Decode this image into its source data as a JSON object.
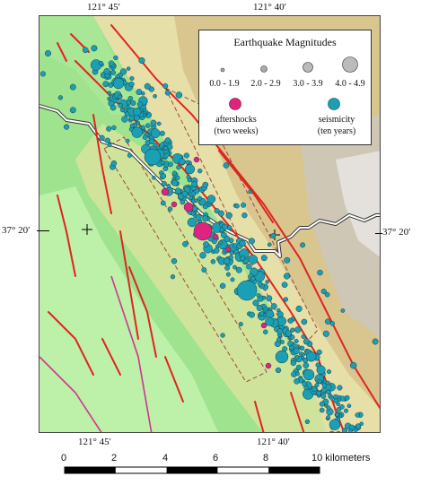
{
  "coords": {
    "top_left": "121° 45′",
    "top_right": "121° 40′",
    "bottom_left": "121° 45′",
    "bottom_right": "121° 40′",
    "left_lat": "37° 20′",
    "right_lat": "37° 20′"
  },
  "legend": {
    "title": "Earthquake Magnitudes",
    "ranges": [
      "0.0 - 1.9",
      "2.0 - 2.9",
      "3.0 - 3.9",
      "4.0 - 4.9"
    ],
    "aftershocks_label_1": "aftershocks",
    "aftershocks_label_2": "(two weeks)",
    "seismicity_label_1": "seismicity",
    "seismicity_label_2": "(ten years)"
  },
  "scale": {
    "ticks": [
      "0",
      "2",
      "4",
      "6",
      "8"
    ],
    "end_label": "10 kilometers"
  },
  "colors": {
    "aftershock": "#e0237f",
    "seismicity": "#1b9fb5",
    "fault": "#e0241f",
    "magenta_fault": "#d0348c",
    "box": "#a0473a"
  }
}
